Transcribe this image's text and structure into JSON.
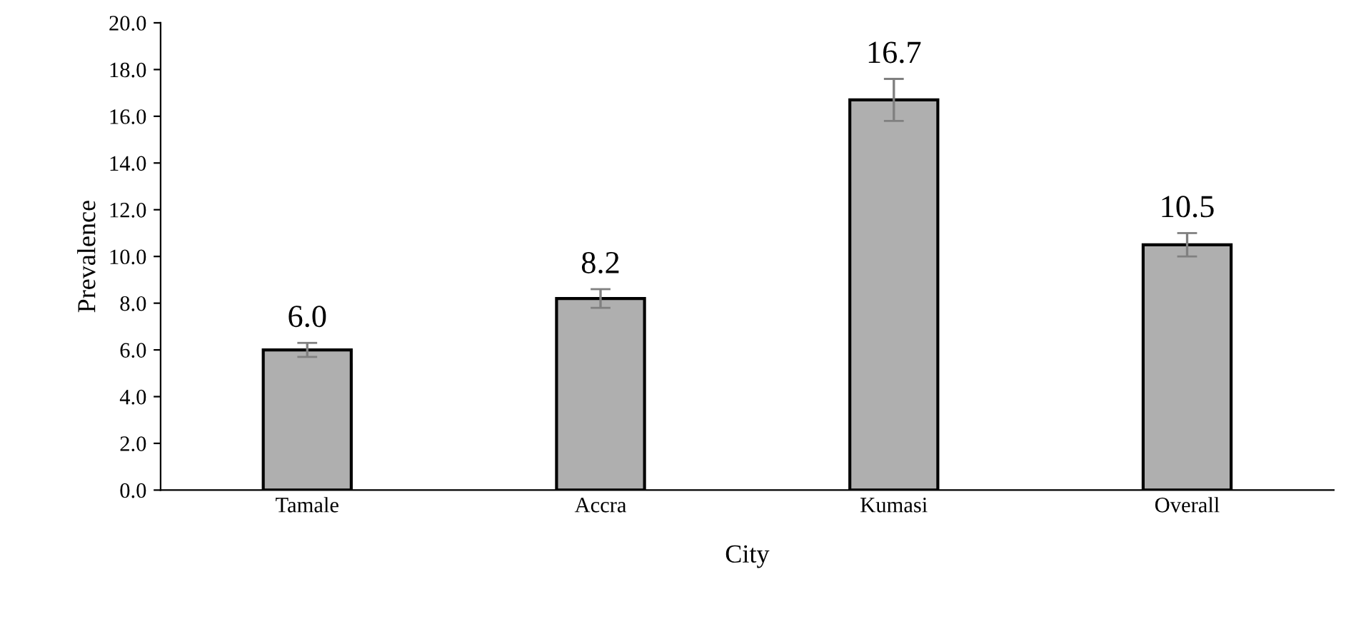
{
  "chart_data": {
    "type": "bar",
    "xlabel": "City",
    "ylabel": "Prevalence",
    "categories": [
      "Tamale",
      "Accra",
      "Kumasi",
      "Overall"
    ],
    "values": [
      6.0,
      8.2,
      16.7,
      10.5
    ],
    "errors": [
      0.3,
      0.4,
      0.9,
      0.5
    ],
    "color": "#afafaf",
    "ylim": [
      0,
      20
    ],
    "yticks": [
      {
        "value": 0,
        "label": "0.0"
      },
      {
        "value": 2,
        "label": "2.0"
      },
      {
        "value": 4,
        "label": "4.0"
      },
      {
        "value": 6,
        "label": "6.0"
      },
      {
        "value": 8,
        "label": "8.0"
      },
      {
        "value": 10,
        "label": "10.0"
      },
      {
        "value": 12,
        "label": "12.0"
      },
      {
        "value": 14,
        "label": "14.0"
      },
      {
        "value": 16,
        "label": "16.0"
      },
      {
        "value": 18,
        "label": "18.0"
      },
      {
        "value": 20,
        "label": "20.0"
      }
    ],
    "value_labels": [
      "6.0",
      "8.2",
      "16.7",
      "10.5"
    ],
    "grid": false,
    "legend": false
  }
}
